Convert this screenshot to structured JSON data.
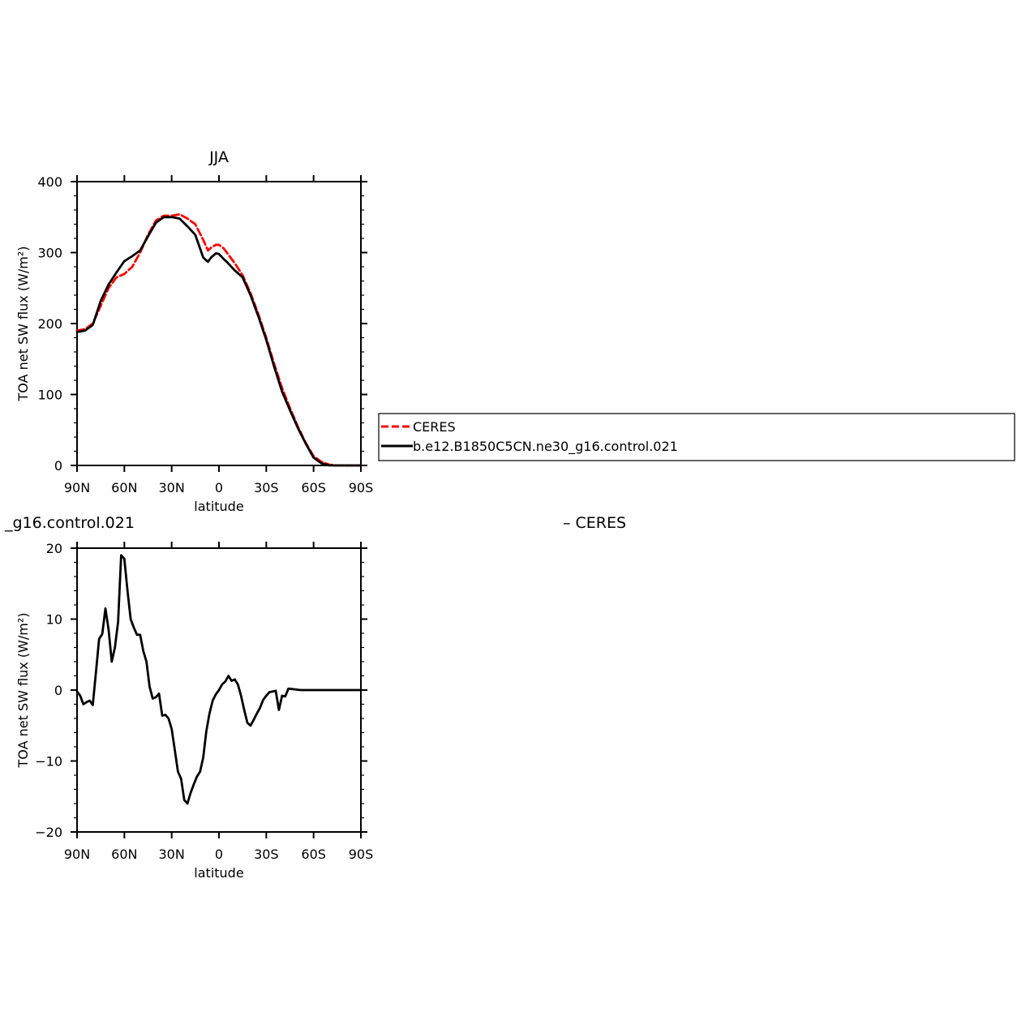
{
  "chart_data": [
    {
      "type": "line",
      "title": "JJA",
      "xlabel": "latitude",
      "ylabel": "TOA net SW flux (W/m²)",
      "x_tick_labels": [
        "90N",
        "60N",
        "30N",
        "0",
        "30S",
        "60S",
        "90S"
      ],
      "x_tick_values": [
        90,
        60,
        30,
        0,
        -30,
        -60,
        -90
      ],
      "xlim": [
        90,
        -90
      ],
      "ylim": [
        0,
        400
      ],
      "y_ticks": [
        0,
        100,
        200,
        300,
        400
      ],
      "grid": false,
      "legend": {
        "placement": "right",
        "entries": [
          {
            "label": "CERES",
            "color": "#ff0000",
            "style": "dashed"
          },
          {
            "label": "b.e12.B1850C5CN.ne30_g16.control.021",
            "color": "#000000",
            "style": "solid"
          }
        ]
      },
      "series": [
        {
          "name": "CERES",
          "color": "#ff0000",
          "style": "dashed",
          "x": [
            90,
            85,
            80,
            75,
            70,
            65,
            60,
            55,
            50,
            45,
            40,
            35,
            30,
            25,
            20,
            15,
            10,
            7,
            5,
            2,
            0,
            -3,
            -5,
            -10,
            -15,
            -20,
            -25,
            -30,
            -35,
            -40,
            -45,
            -50,
            -55,
            -60,
            -65,
            -70,
            -75,
            -80,
            -85,
            -90
          ],
          "y": [
            190,
            192,
            200,
            225,
            250,
            265,
            270,
            280,
            300,
            325,
            345,
            352,
            352,
            354,
            348,
            340,
            318,
            303,
            307,
            311,
            311,
            306,
            300,
            285,
            268,
            243,
            213,
            180,
            143,
            109,
            81,
            55,
            32,
            13,
            5,
            1,
            0,
            0,
            0,
            0
          ]
        },
        {
          "name": "b.e12.B1850C5CN.ne30_g16.control.021",
          "color": "#000000",
          "style": "solid",
          "x": [
            90,
            85,
            80,
            75,
            70,
            65,
            60,
            55,
            50,
            45,
            40,
            35,
            30,
            25,
            20,
            15,
            10,
            7,
            5,
            2,
            0,
            -3,
            -5,
            -10,
            -15,
            -20,
            -25,
            -30,
            -35,
            -40,
            -45,
            -50,
            -55,
            -60,
            -65,
            -70,
            -75,
            -80,
            -85,
            -90
          ],
          "y": [
            188,
            190,
            198,
            232,
            255,
            272,
            288,
            295,
            303,
            323,
            342,
            350,
            350,
            348,
            337,
            325,
            293,
            287,
            293,
            299,
            298,
            291,
            287,
            275,
            265,
            240,
            210,
            177,
            139,
            104,
            78,
            53,
            31,
            11,
            3,
            0,
            0,
            0,
            0,
            0
          ]
        }
      ]
    },
    {
      "type": "line",
      "title": "_g16.control.021",
      "title_right": "– CERES",
      "xlabel": "latitude",
      "ylabel": "TOA net SW flux (W/m²)",
      "x_tick_labels": [
        "90N",
        "60N",
        "30N",
        "0",
        "30S",
        "60S",
        "90S"
      ],
      "x_tick_values": [
        90,
        60,
        30,
        0,
        -30,
        -60,
        -90
      ],
      "xlim": [
        90,
        -90
      ],
      "ylim": [
        -20,
        20
      ],
      "y_ticks": [
        -20,
        -10,
        0,
        10,
        20
      ],
      "y_tick_labels": [
        "−20",
        "−10",
        "0",
        "10",
        "20"
      ],
      "grid": false,
      "series": [
        {
          "color": "#000000",
          "style": "solid",
          "x": [
            90,
            88,
            86,
            84,
            82,
            80,
            78,
            76,
            74,
            72,
            70,
            68,
            66,
            64,
            62,
            60,
            58,
            56,
            54,
            52,
            50,
            48,
            46,
            44,
            42,
            40,
            38,
            36,
            34,
            32,
            30,
            28,
            26,
            24,
            22,
            20,
            18,
            16,
            14,
            12,
            10,
            8,
            6,
            4,
            2,
            0,
            -2,
            -4,
            -6,
            -8,
            -10,
            -12,
            -14,
            -16,
            -18,
            -20,
            -22,
            -24,
            -26,
            -28,
            -30,
            -32,
            -34,
            -36,
            -38,
            -40,
            -42,
            -44,
            -46,
            -48,
            -50,
            -52,
            -54,
            -56,
            -58,
            -60,
            -62,
            -64,
            -66,
            -68,
            -70,
            -72,
            -74,
            -76,
            -78,
            -80,
            -82,
            -84,
            -86,
            -88,
            -90
          ],
          "y": [
            -0.2,
            -0.8,
            -2.0,
            -1.7,
            -1.5,
            -2.1,
            2.5,
            7.2,
            7.9,
            11.5,
            8.5,
            4.0,
            6.0,
            9.6,
            19.0,
            18.5,
            14.0,
            10.0,
            8.8,
            7.8,
            7.8,
            5.5,
            4.0,
            0.5,
            -1.2,
            -1.0,
            -0.5,
            -3.6,
            -3.5,
            -4.0,
            -5.5,
            -8.5,
            -11.5,
            -12.5,
            -15.5,
            -16.0,
            -14.5,
            -13.3,
            -12.2,
            -11.5,
            -9.5,
            -5.8,
            -3.3,
            -1.5,
            -0.6,
            0.0,
            0.8,
            1.2,
            2.0,
            1.3,
            1.5,
            0.8,
            -0.8,
            -2.8,
            -4.6,
            -5.0,
            -4.2,
            -3.3,
            -2.5,
            -1.4,
            -0.8,
            -0.3,
            -0.2,
            -0.1,
            -2.8,
            -0.8,
            -0.9,
            0.2,
            0.15,
            0.1,
            0.05,
            0.0,
            0.0,
            0.0,
            0.0,
            0.0,
            0.0,
            0.0,
            0.0,
            0.0,
            0.0,
            0.0,
            0.0,
            0.0,
            0.0,
            0.0,
            0.0,
            0.0,
            0.0,
            0.0,
            0.0
          ]
        }
      ]
    }
  ]
}
